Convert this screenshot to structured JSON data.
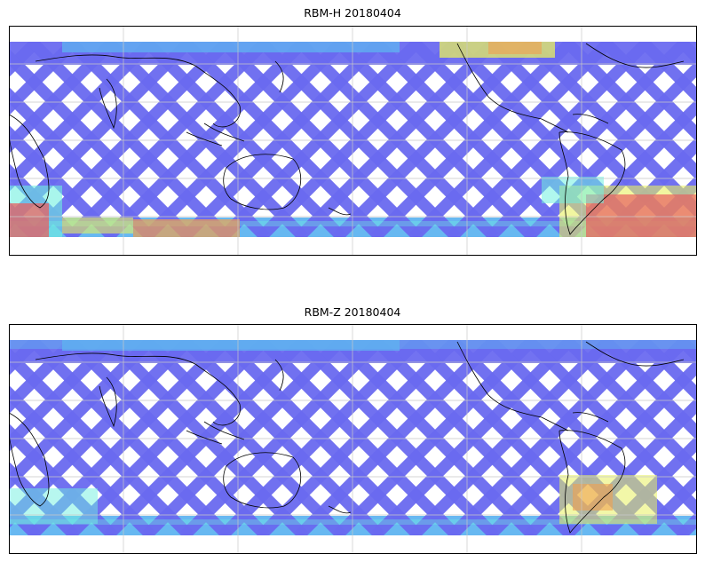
{
  "panels": [
    {
      "title": "RBM-H 20180404",
      "warm_region": "strong"
    },
    {
      "title": "RBM-Z 20180404",
      "warm_region": "weak"
    }
  ],
  "colors": {
    "low": "#6a6af0",
    "low_mid": "#5fb4f0",
    "mid": "#6ff0e0",
    "mid_high": "#e8f060",
    "high": "#f0a050",
    "max": "#e86060",
    "coast": "#000000",
    "grid": "#c8c8c8"
  },
  "legend": "none",
  "grid": "on"
}
